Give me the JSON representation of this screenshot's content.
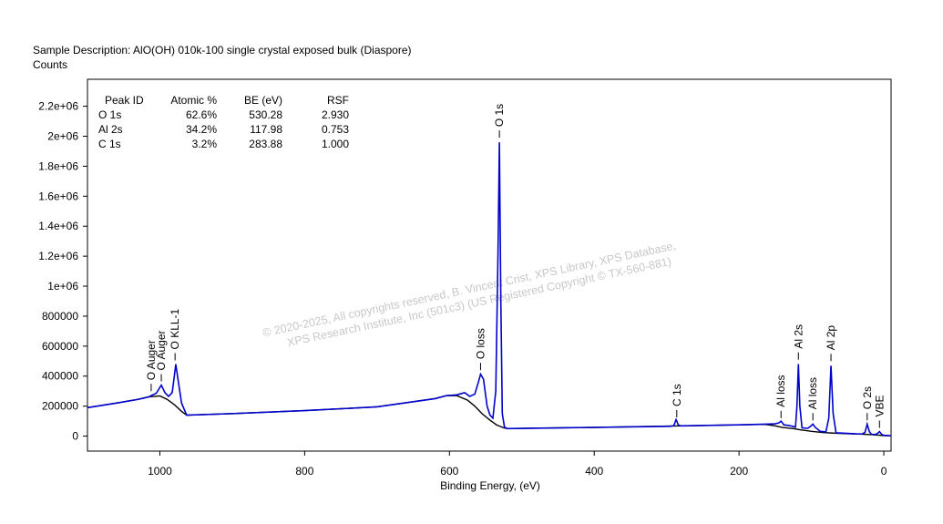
{
  "chart_data": {
    "type": "line",
    "title": "Sample Description:  AlO(OH) 010k-100 single crystal exposed bulk (Diaspore)",
    "y_label": "Counts",
    "x_label": "Binding Energy, (eV)",
    "watermark": [
      "©  2020-2025,  All copyrights reserved,    B. Vincent Crist,  XPS Library, XPS Database,",
      "XPS Research Institute, Inc (501c3)   (US Registered Copyright © TX-560-881)"
    ],
    "xlim": [
      1100,
      -10
    ],
    "ylim": [
      -100000,
      2380000
    ],
    "xticks": [
      1000,
      800,
      600,
      400,
      200,
      0
    ],
    "yticks": [
      0,
      200000,
      400000,
      600000,
      800000,
      {
        "value": 1000000,
        "label": "1e+06"
      },
      {
        "value": 1200000,
        "label": "1.2e+06"
      },
      {
        "value": 1400000,
        "label": "1.4e+06"
      },
      {
        "value": 1600000,
        "label": "1.6e+06"
      },
      {
        "value": 1800000,
        "label": "1.8e+06"
      },
      {
        "value": 2000000,
        "label": "2e+06"
      },
      {
        "value": 2200000,
        "label": "2.2e+06"
      }
    ],
    "series": [
      {
        "color": "#0000cc",
        "x": [
          1100,
          1060,
          1030,
          1015,
          1010,
          1005,
          998,
          993,
          988,
          983,
          980,
          978,
          975,
          970,
          963,
          900,
          800,
          700,
          620,
          604,
          590,
          579,
          572,
          565,
          560,
          557,
          553,
          548,
          544,
          540,
          536,
          533,
          531,
          529,
          527,
          524,
          520,
          400,
          295,
          290,
          287,
          286,
          284,
          280,
          200,
          164,
          150,
          145,
          142,
          138,
          130,
          122,
          120,
          118,
          116,
          113,
          105,
          100,
          98,
          95,
          88,
          80,
          76,
          73,
          70,
          66,
          50,
          38,
          30,
          26,
          23,
          20,
          17,
          12,
          8,
          6,
          3,
          0,
          -10
        ],
        "values": [
          190000,
          220000,
          245000,
          262000,
          275000,
          285000,
          340000,
          290000,
          265000,
          290000,
          400000,
          480000,
          380000,
          220000,
          140000,
          150000,
          170000,
          195000,
          250000,
          270000,
          275000,
          290000,
          265000,
          280000,
          360000,
          413000,
          380000,
          200000,
          140000,
          120000,
          300000,
          1200000,
          1960000,
          900000,
          150000,
          60000,
          50000,
          58000,
          65000,
          70000,
          110000,
          100000,
          75000,
          68000,
          75000,
          80000,
          82000,
          88000,
          100000,
          75000,
          70000,
          60000,
          200000,
          480000,
          200000,
          55000,
          52000,
          70000,
          80000,
          60000,
          32000,
          28000,
          120000,
          470000,
          150000,
          22000,
          18000,
          15000,
          14000,
          25000,
          80000,
          30000,
          12000,
          10000,
          20000,
          30000,
          12000,
          5000,
          2000
        ]
      },
      {
        "color": "#000000",
        "x": [
          1100,
          1060,
          1030,
          1015,
          1000,
          990,
          980,
          970,
          963,
          900,
          800,
          700,
          620,
          604,
          590,
          575,
          565,
          555,
          545,
          535,
          525,
          520,
          400,
          280,
          200,
          164,
          150,
          140,
          125,
          115,
          100,
          85,
          70,
          50,
          30,
          15,
          5,
          0,
          -10
        ],
        "values": [
          190000,
          220000,
          245000,
          262000,
          268000,
          245000,
          210000,
          165000,
          140000,
          150000,
          170000,
          195000,
          250000,
          270000,
          270000,
          240000,
          200000,
          150000,
          110000,
          75000,
          55000,
          50000,
          58000,
          68000,
          75000,
          78000,
          68000,
          58000,
          50000,
          42000,
          32000,
          24000,
          20000,
          16000,
          13000,
          9000,
          5000,
          3000,
          2000
        ]
      }
    ],
    "annotations": [
      {
        "text": "O Auger",
        "x": 1012,
        "y": 300000
      },
      {
        "text": "O Auger",
        "x": 998,
        "y": 365000
      },
      {
        "text": "O KLL-1",
        "x": 979,
        "y": 505000
      },
      {
        "text": "O loss",
        "x": 557,
        "y": 440000
      },
      {
        "text": "O 1s",
        "x": 531,
        "y": 1990000
      },
      {
        "text": "C 1s",
        "x": 286,
        "y": 125000
      },
      {
        "text": "Al loss",
        "x": 142,
        "y": 120000
      },
      {
        "text": "Al 2s",
        "x": 118,
        "y": 510000
      },
      {
        "text": "Al loss",
        "x": 98,
        "y": 105000
      },
      {
        "text": "Al 2p",
        "x": 73,
        "y": 500000
      },
      {
        "text": "O 2s",
        "x": 23,
        "y": 105000
      },
      {
        "text": "VBE",
        "x": 6,
        "y": 55000
      }
    ],
    "peak_table": {
      "columns": [
        "Peak ID",
        "Atomic %",
        "BE (eV)",
        "RSF"
      ],
      "rows": [
        [
          "O 1s",
          "62.6%",
          "530.28",
          "2.930"
        ],
        [
          "Al 2s",
          "34.2%",
          "117.98",
          "0.753"
        ],
        [
          "C 1s",
          "3.2%",
          "283.88",
          "1.000"
        ]
      ]
    }
  }
}
